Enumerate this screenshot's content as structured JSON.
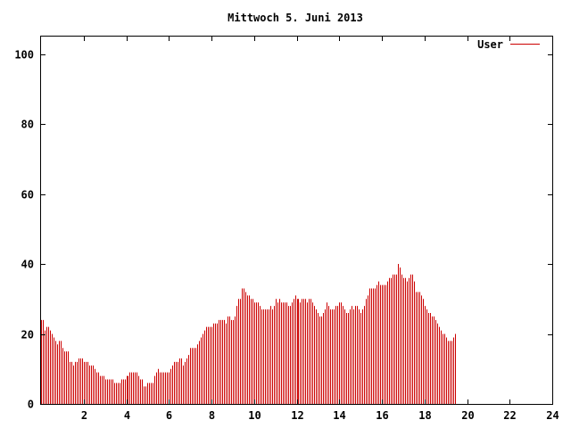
{
  "chart_data": {
    "type": "bar",
    "title": "Mittwoch 5. Juni 2013",
    "xlabel": "",
    "ylabel": "",
    "xlim": [
      0,
      24
    ],
    "ylim": [
      0,
      105
    ],
    "x_ticks": [
      2,
      4,
      6,
      8,
      10,
      12,
      14,
      16,
      18,
      20,
      22,
      24
    ],
    "y_ticks": [
      0,
      20,
      40,
      60,
      80,
      100
    ],
    "grid": false,
    "legend_position": "top-right",
    "colors": {
      "bar": "#cc0000",
      "axis": "#000000",
      "background": "#ffffff"
    },
    "series": [
      {
        "name": "User",
        "interval_minutes": 5,
        "values": [
          24,
          24,
          21,
          22,
          22,
          21,
          20,
          19,
          18,
          17,
          18,
          18,
          16,
          15,
          15,
          15,
          12,
          12,
          11,
          12,
          12,
          13,
          13,
          13,
          12,
          12,
          12,
          11,
          11,
          11,
          10,
          9,
          9,
          8,
          8,
          8,
          7,
          7,
          7,
          7,
          7,
          6,
          6,
          6,
          6,
          7,
          7,
          7,
          8,
          8,
          9,
          9,
          9,
          9,
          9,
          8,
          7,
          7,
          5,
          5,
          6,
          6,
          6,
          6,
          8,
          9,
          10,
          9,
          9,
          9,
          9,
          9,
          9,
          10,
          11,
          12,
          12,
          12,
          13,
          13,
          11,
          12,
          13,
          14,
          16,
          16,
          16,
          16,
          17,
          18,
          19,
          20,
          21,
          22,
          22,
          22,
          22,
          23,
          23,
          23,
          24,
          24,
          24,
          24,
          23,
          25,
          25,
          24,
          24,
          25,
          28,
          30,
          30,
          33,
          33,
          32,
          31,
          31,
          30,
          30,
          29,
          29,
          29,
          28,
          27,
          27,
          27,
          27,
          27,
          28,
          27,
          28,
          30,
          29,
          30,
          29,
          29,
          29,
          29,
          28,
          28,
          29,
          30,
          31,
          30,
          30,
          29,
          30,
          30,
          30,
          29,
          30,
          30,
          29,
          28,
          27,
          26,
          25,
          25,
          26,
          27,
          29,
          28,
          27,
          27,
          27,
          28,
          28,
          29,
          29,
          28,
          27,
          26,
          26,
          27,
          28,
          27,
          28,
          28,
          27,
          26,
          27,
          28,
          30,
          31,
          33,
          33,
          33,
          33,
          34,
          35,
          34,
          34,
          34,
          34,
          35,
          36,
          36,
          37,
          37,
          37,
          40,
          39,
          37,
          36,
          36,
          35,
          36,
          37,
          37,
          35,
          32,
          32,
          32,
          31,
          30,
          28,
          27,
          26,
          26,
          25,
          25,
          24,
          23,
          22,
          21,
          20,
          20,
          19,
          18,
          18,
          18,
          19,
          20
        ]
      }
    ]
  }
}
